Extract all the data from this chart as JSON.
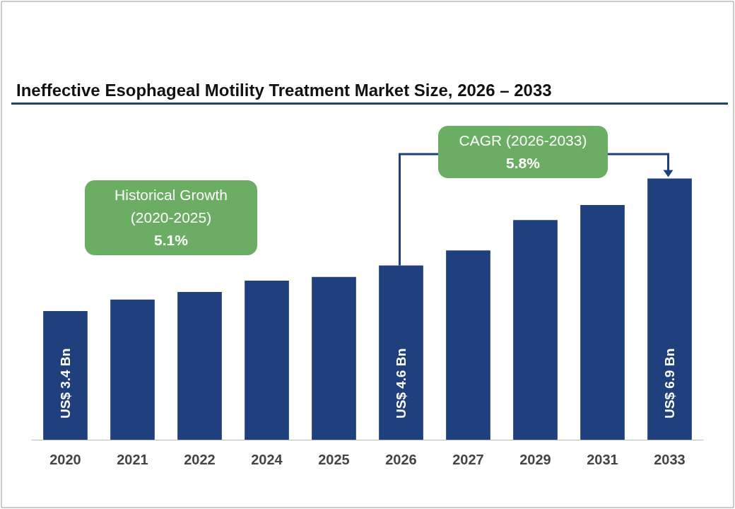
{
  "chart_data": {
    "type": "bar",
    "title": "Ineffective Esophageal Motility Treatment Market Size, 2026 – 2033",
    "categories": [
      "2020",
      "2021",
      "2022",
      "2024",
      "2025",
      "2026",
      "2027",
      "2029",
      "2031",
      "2033"
    ],
    "values": [
      3.4,
      3.7,
      3.9,
      4.2,
      4.3,
      4.6,
      5.0,
      5.8,
      6.2,
      6.9
    ],
    "value_labels": [
      "US$ 3.4 Bn",
      null,
      null,
      null,
      null,
      "US$ 4.6 Bn",
      null,
      null,
      null,
      "US$ 6.9 Bn"
    ],
    "color": "#1f3f7d",
    "annotations": [
      "Historical Growth\n(2020-2025)\n5.1%",
      "CAGR (2026-2033)\n5.8%"
    ]
  }
}
